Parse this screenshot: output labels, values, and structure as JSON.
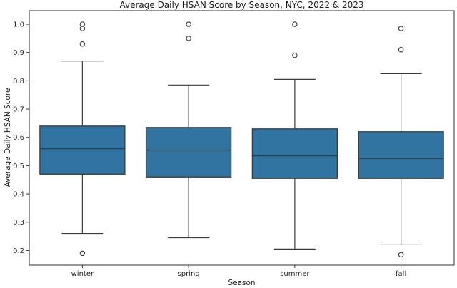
{
  "chart_data": {
    "type": "box",
    "title": "Average Daily HSAN Score by Season, NYC, 2022 & 2023",
    "xlabel": "Season",
    "ylabel": "Average Daily HSAN Score",
    "categories": [
      "winter",
      "spring",
      "summer",
      "fall"
    ],
    "yticks": [
      "0.2",
      "0.3",
      "0.4",
      "0.5",
      "0.6",
      "0.7",
      "0.8",
      "0.9",
      "1.0"
    ],
    "ylim": [
      0.148,
      1.048
    ],
    "grid": false,
    "legend": false,
    "series": [
      {
        "name": "winter",
        "whisker_low": 0.26,
        "q1": 0.47,
        "median": 0.56,
        "q3": 0.64,
        "whisker_high": 0.87,
        "outliers": [
          1.0,
          0.985,
          0.93,
          0.19
        ]
      },
      {
        "name": "spring",
        "whisker_low": 0.245,
        "q1": 0.46,
        "median": 0.555,
        "q3": 0.635,
        "whisker_high": 0.785,
        "outliers": [
          1.0,
          0.95
        ]
      },
      {
        "name": "summer",
        "whisker_low": 0.205,
        "q1": 0.455,
        "median": 0.535,
        "q3": 0.63,
        "whisker_high": 0.805,
        "outliers": [
          1.0,
          0.89
        ]
      },
      {
        "name": "fall",
        "whisker_low": 0.22,
        "q1": 0.455,
        "median": 0.525,
        "q3": 0.62,
        "whisker_high": 0.825,
        "outliers": [
          0.985,
          0.91,
          0.185
        ]
      }
    ],
    "colors": {
      "box_fill": "#3274a1",
      "box_edge": "#3a3a3a",
      "median_line": "#30404f",
      "whisker": "#3a3a3a",
      "outlier_stroke": "#3a3a3a",
      "axis": "#2e2e2e",
      "text": "#262626",
      "background": "#ffffff"
    }
  }
}
